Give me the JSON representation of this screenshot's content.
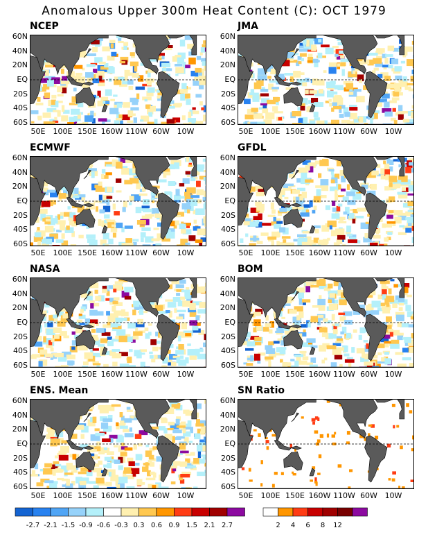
{
  "title": "Anomalous Upper 300m Heat Content (C): OCT 1979",
  "lat_ticks": [
    "60N",
    "40N",
    "20N",
    "EQ",
    "20S",
    "40S",
    "60S"
  ],
  "lon_ticks": [
    "50E",
    "100E",
    "150E",
    "160W",
    "110W",
    "60W",
    "10W"
  ],
  "panels": [
    {
      "label": "NCEP"
    },
    {
      "label": "JMA"
    },
    {
      "label": "ECMWF"
    },
    {
      "label": "GFDL"
    },
    {
      "label": "NASA"
    },
    {
      "label": "BOM"
    },
    {
      "label": "ENS. Mean"
    },
    {
      "label": "SN Ratio"
    }
  ],
  "anomaly_colorbar": {
    "colors": [
      "#1464d2",
      "#2882f0",
      "#50a5f5",
      "#96d2fa",
      "#b4f0fa",
      "#ffffff",
      "#fff0b0",
      "#ffc850",
      "#ff9600",
      "#ff3c14",
      "#c80000",
      "#a00000",
      "#8c0aa0"
    ],
    "ticks": [
      "-2.7",
      "-2.1",
      "-1.5",
      "-0.9",
      "-0.6",
      "-0.3",
      "0.3",
      "0.6",
      "0.9",
      "1.5",
      "2.1",
      "2.7"
    ]
  },
  "snr_colorbar": {
    "colors": [
      "#ffffff",
      "#ff9600",
      "#ff3c14",
      "#c80000",
      "#a00000",
      "#780000",
      "#8c0aa0"
    ],
    "ticks": [
      "2",
      "4",
      "6",
      "8",
      "12"
    ]
  },
  "colors": {
    "land": "#5a5a5a",
    "ocean": "#ffffff"
  }
}
